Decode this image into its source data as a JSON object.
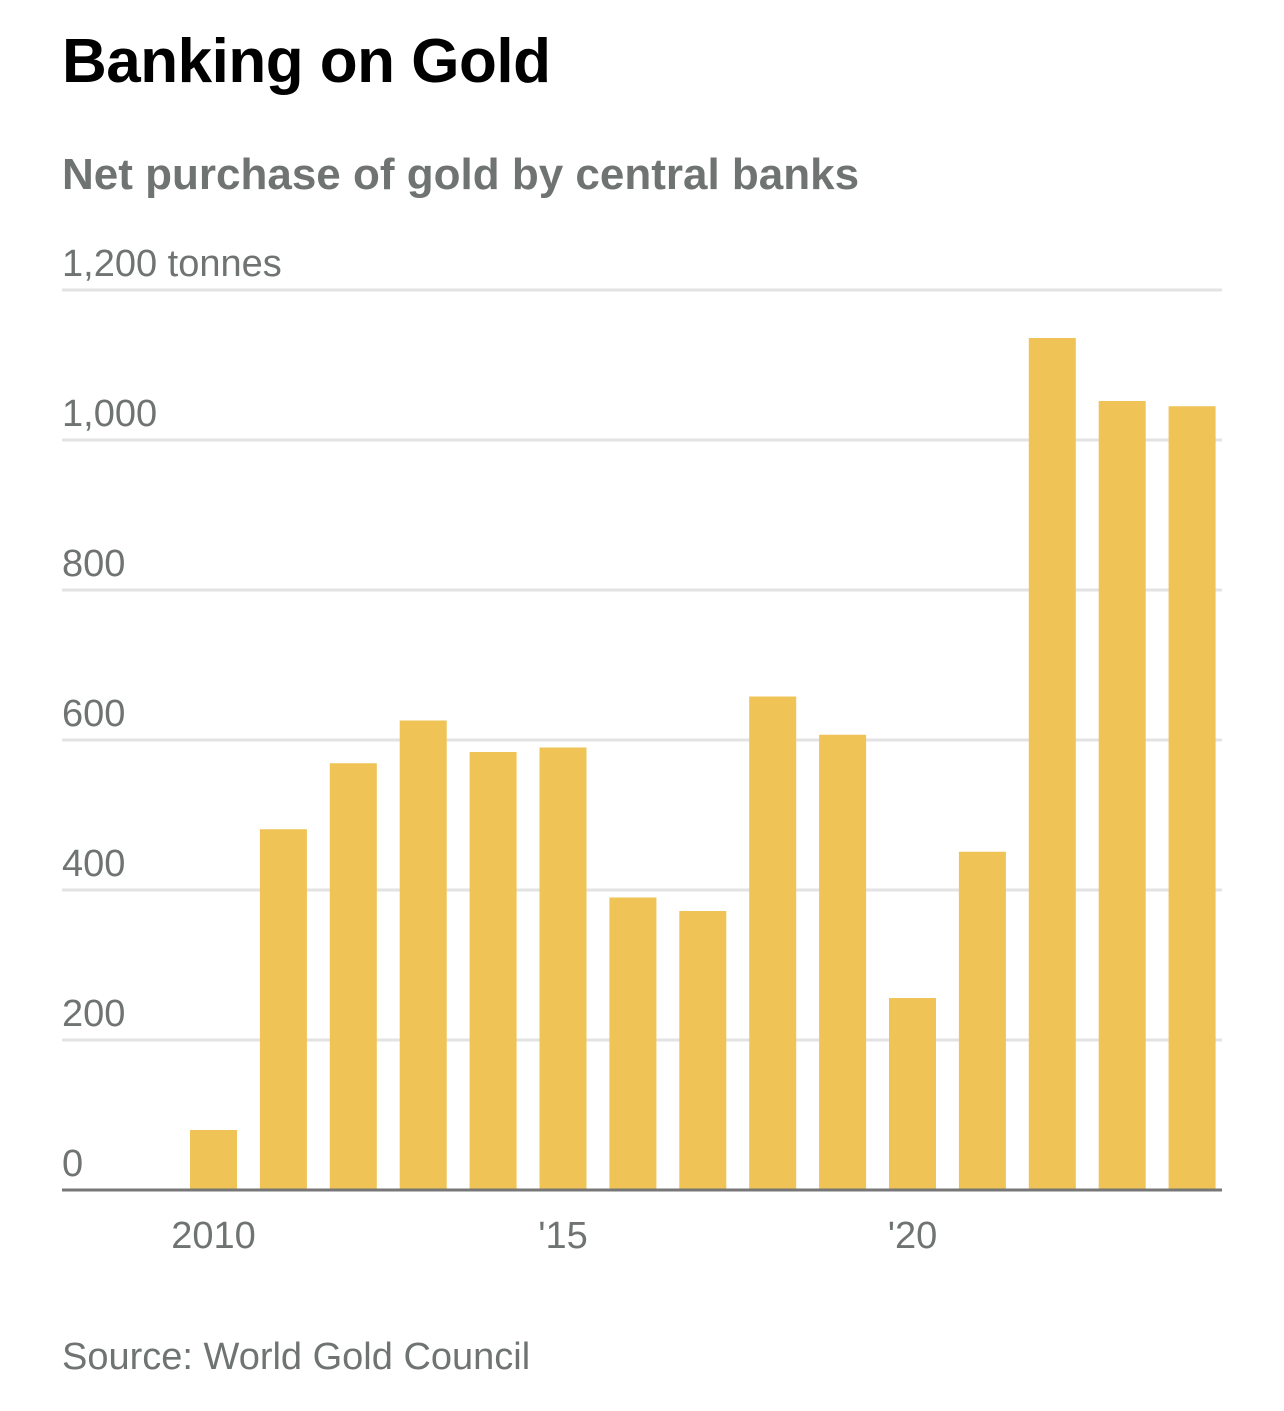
{
  "header": {
    "title": "Banking on Gold",
    "subtitle": "Net purchase of gold by central banks"
  },
  "footer": {
    "source": "Source: World Gold Council"
  },
  "colors": {
    "bar": "#efc355",
    "grid": "#e3e3e3",
    "baseline": "#777777",
    "label_text": "#6f7472"
  },
  "chart_data": {
    "type": "bar",
    "categories": [
      2010,
      2011,
      2012,
      2013,
      2014,
      2015,
      2016,
      2017,
      2018,
      2019,
      2020,
      2021,
      2022,
      2023,
      2024
    ],
    "values": [
      80,
      481,
      569,
      626,
      584,
      590,
      390,
      372,
      658,
      607,
      256,
      451,
      1136,
      1052,
      1045
    ],
    "title": "Banking on Gold",
    "subtitle": "Net purchase of gold by central banks",
    "ylim": [
      0,
      1200
    ],
    "y_ticks": [
      {
        "value": 0,
        "label": "0"
      },
      {
        "value": 200,
        "label": "200"
      },
      {
        "value": 400,
        "label": "400"
      },
      {
        "value": 600,
        "label": "600"
      },
      {
        "value": 800,
        "label": "800"
      },
      {
        "value": 1000,
        "label": "1,000"
      },
      {
        "value": 1200,
        "label": "1,200 tonnes"
      }
    ],
    "x_ticks": [
      {
        "value": 2010,
        "label": "2010"
      },
      {
        "value": 2015,
        "label": "'15"
      },
      {
        "value": 2020,
        "label": "'20"
      }
    ],
    "grid": true,
    "legend": "none"
  }
}
